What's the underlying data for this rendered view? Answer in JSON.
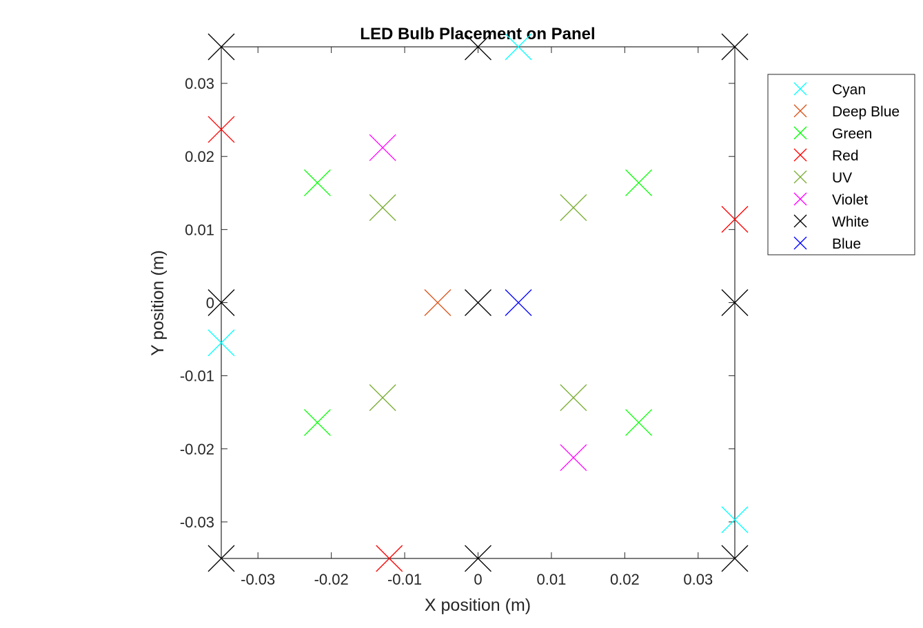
{
  "chart_data": {
    "type": "scatter",
    "title": "LED Bulb Placement on Panel",
    "xlabel": "X position (m)",
    "ylabel": "Y position (m)",
    "xlim": [
      -0.035,
      0.035
    ],
    "ylim": [
      -0.035,
      0.035
    ],
    "xticks": [
      -0.03,
      -0.02,
      -0.01,
      0,
      0.01,
      0.02,
      0.03
    ],
    "yticks": [
      -0.03,
      -0.02,
      -0.01,
      0,
      0.01,
      0.02,
      0.03
    ],
    "xtick_labels": [
      "-0.03",
      "-0.02",
      "-0.01",
      "0",
      "0.01",
      "0.02",
      "0.03"
    ],
    "ytick_labels": [
      "-0.03",
      "-0.02",
      "-0.01",
      "0",
      "0.01",
      "0.02",
      "0.03"
    ],
    "grid": false,
    "legend_position": "outside-right",
    "marker": "x",
    "series": [
      {
        "name": "Cyan",
        "color": "#00ffff",
        "points": [
          [
            0.0055,
            0.035
          ],
          [
            -0.035,
            -0.0055
          ],
          [
            0.035,
            -0.0297
          ]
        ]
      },
      {
        "name": "Deep Blue",
        "color": "#d95319",
        "points": [
          [
            -0.0055,
            0.0
          ]
        ]
      },
      {
        "name": "Green",
        "color": "#00ff00",
        "points": [
          [
            -0.0219,
            0.0164
          ],
          [
            0.0219,
            0.0164
          ],
          [
            -0.0219,
            -0.0164
          ],
          [
            0.0219,
            -0.0164
          ]
        ]
      },
      {
        "name": "Red",
        "color": "#ff0000",
        "points": [
          [
            -0.035,
            0.0237
          ],
          [
            0.035,
            0.0114
          ],
          [
            -0.0121,
            -0.035
          ]
        ]
      },
      {
        "name": "UV",
        "color": "#77ac30",
        "points": [
          [
            -0.013,
            0.013
          ],
          [
            0.013,
            0.013
          ],
          [
            -0.013,
            -0.013
          ],
          [
            0.013,
            -0.013
          ]
        ]
      },
      {
        "name": "Violet",
        "color": "#ff00ff",
        "points": [
          [
            -0.013,
            0.0212
          ],
          [
            0.013,
            -0.0212
          ]
        ]
      },
      {
        "name": "White",
        "color": "#000000",
        "points": [
          [
            -0.035,
            0.035
          ],
          [
            0.0,
            0.035
          ],
          [
            0.035,
            0.035
          ],
          [
            -0.035,
            0.0
          ],
          [
            0.0,
            0.0
          ],
          [
            0.035,
            0.0
          ],
          [
            -0.035,
            -0.035
          ],
          [
            0.0,
            -0.035
          ],
          [
            0.035,
            -0.035
          ]
        ]
      },
      {
        "name": "Blue",
        "color": "#0000ff",
        "points": [
          [
            0.0055,
            0.0
          ]
        ]
      }
    ]
  }
}
